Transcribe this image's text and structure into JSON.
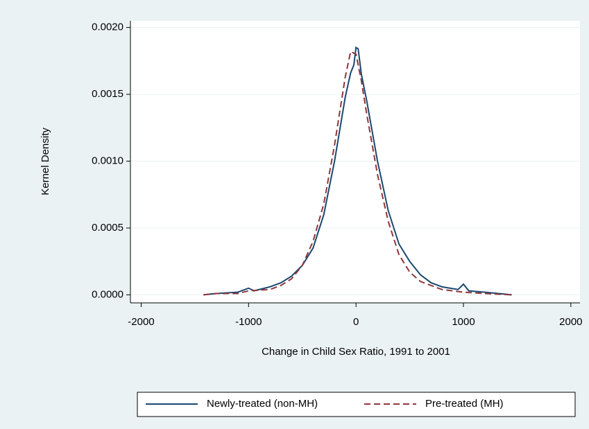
{
  "chart_data": {
    "type": "line",
    "y_label": "Kernel Density",
    "x_label": "Change in Child Sex Ratio, 1991 to 2001",
    "xlim": [
      -2100,
      2085
    ],
    "xticks": [
      -2000,
      -1000,
      0,
      1000,
      2000
    ],
    "ylim": [
      -6e-05,
      0.00205
    ],
    "yticks": [
      {
        "value": 0,
        "label": "0.0000"
      },
      {
        "value": 0.0005,
        "label": "0.0005"
      },
      {
        "value": 0.001,
        "label": "0.0010"
      },
      {
        "value": 0.0015,
        "label": "0.0015"
      },
      {
        "value": 0.002,
        "label": "0.0020"
      }
    ],
    "grid": true,
    "legend": "bottom",
    "series": [
      {
        "name": "Newly-treated (non-MH)",
        "color": "#1a476f",
        "dash": "solid",
        "x": [
          -1420,
          -1300,
          -1100,
          -1000,
          -950,
          -800,
          -700,
          -600,
          -500,
          -400,
          -300,
          -200,
          -100,
          -50,
          -20,
          0,
          20,
          50,
          100,
          200,
          300,
          400,
          500,
          600,
          700,
          800,
          950,
          1000,
          1050,
          1200,
          1450
        ],
        "values": [
          0.0,
          1e-05,
          2e-05,
          5e-05,
          3e-05,
          6e-05,
          9e-05,
          0.00014,
          0.00022,
          0.00035,
          0.0006,
          0.001,
          0.00148,
          0.00166,
          0.00172,
          0.00185,
          0.00184,
          0.00165,
          0.00145,
          0.001,
          0.00063,
          0.00038,
          0.00025,
          0.00015,
          9e-05,
          6e-05,
          4e-05,
          8e-05,
          3e-05,
          2e-05,
          0.0
        ]
      },
      {
        "name": "Pre-treated (MH)",
        "color": "#90353b",
        "dash": "dashed",
        "x": [
          -1420,
          -1300,
          -1100,
          -1000,
          -800,
          -700,
          -600,
          -500,
          -400,
          -300,
          -200,
          -100,
          -50,
          0,
          50,
          100,
          200,
          300,
          400,
          500,
          600,
          700,
          800,
          1000,
          1200,
          1450
        ],
        "values": [
          0.0,
          1e-05,
          1e-05,
          3e-05,
          4e-05,
          7e-05,
          0.00012,
          0.00022,
          0.0004,
          0.00068,
          0.00112,
          0.00163,
          0.00182,
          0.0018,
          0.0016,
          0.00135,
          0.0009,
          0.00055,
          0.0003,
          0.00017,
          0.0001,
          7e-05,
          4e-05,
          2e-05,
          1e-05,
          0.0
        ]
      }
    ]
  }
}
